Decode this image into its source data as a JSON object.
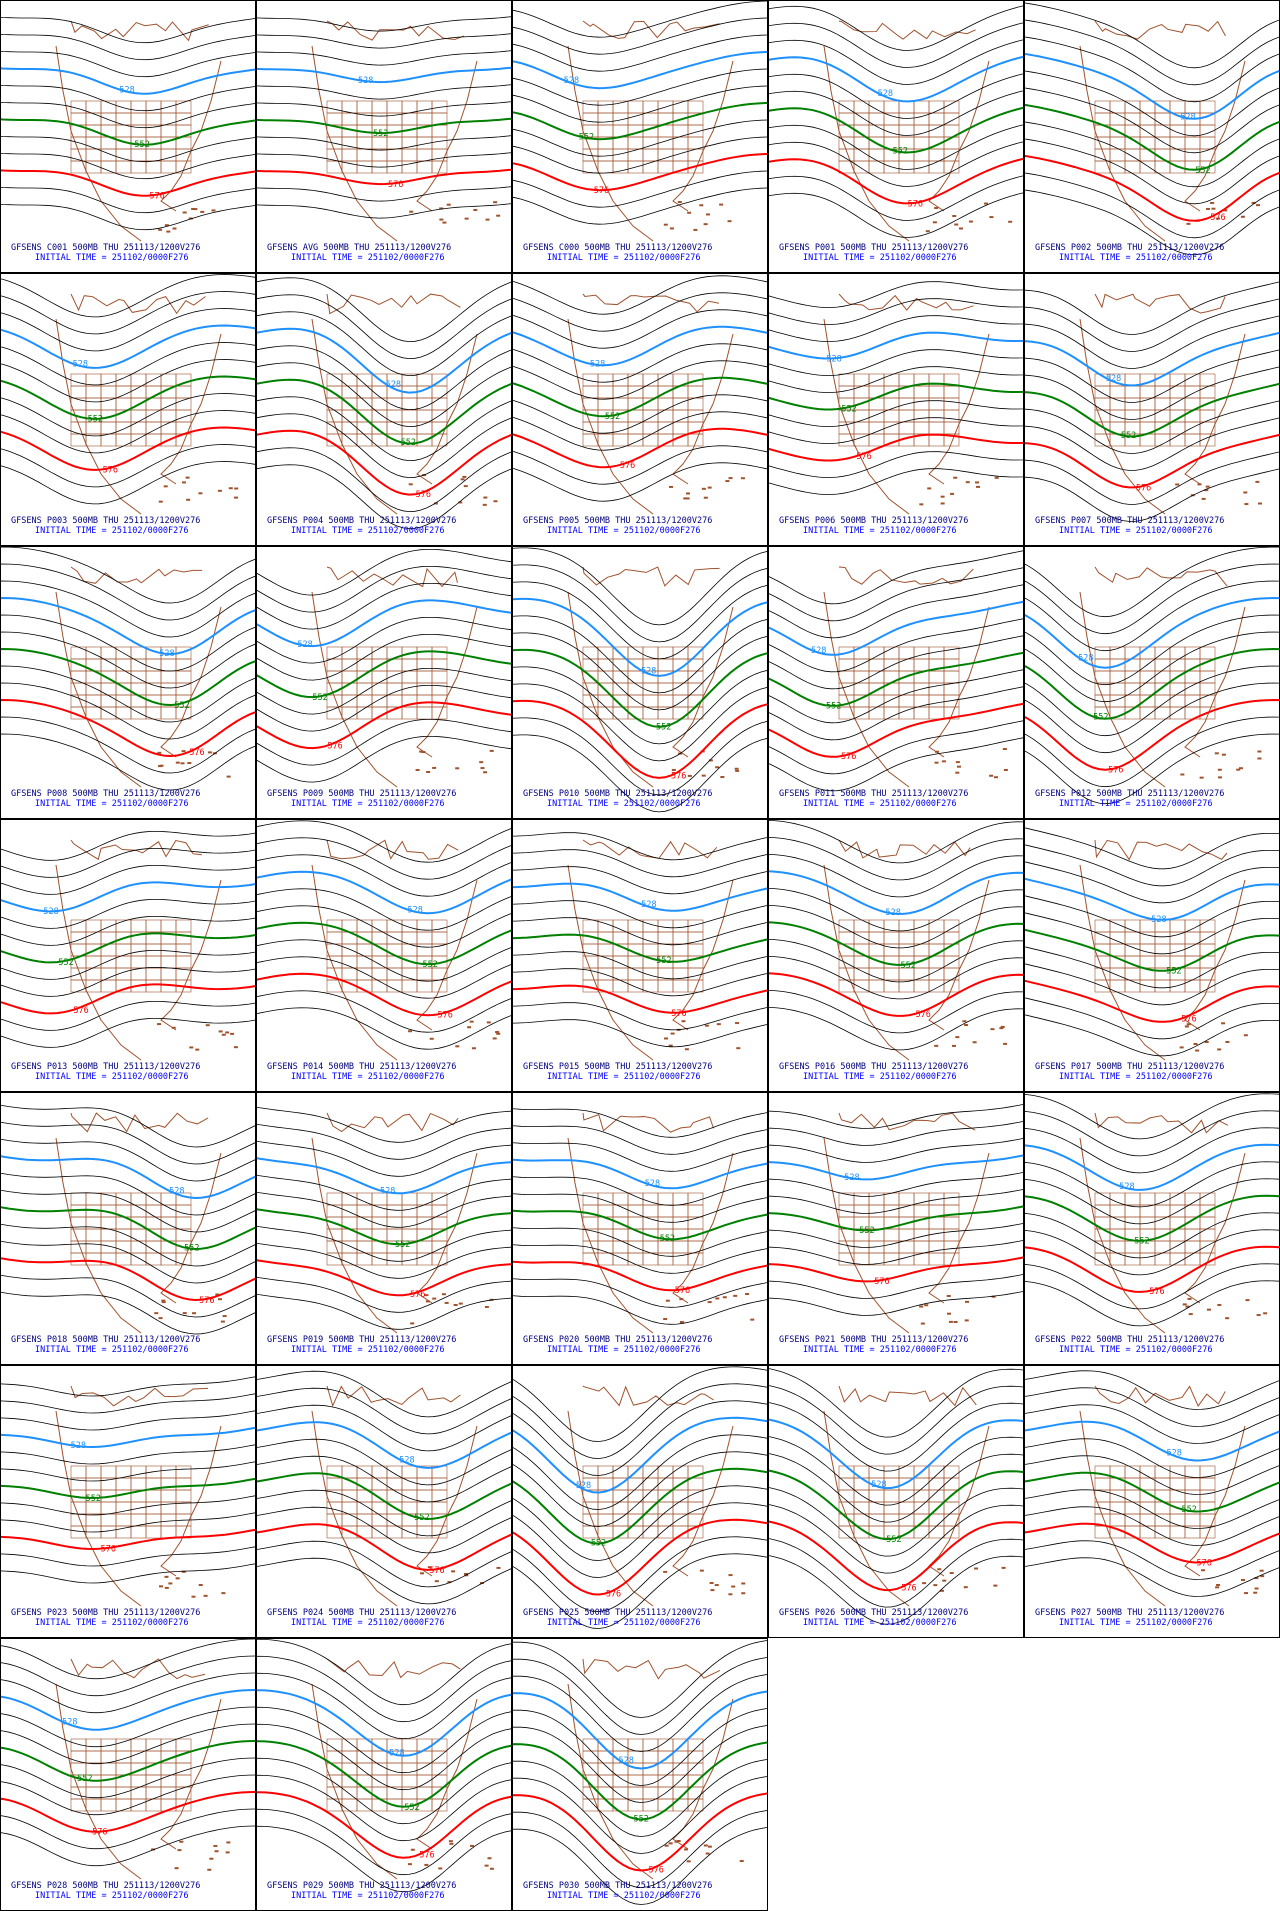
{
  "panels": [
    {
      "title": "GFSENS C001 500MB THU 251113/1200V276",
      "init": "INITIAL TIME = 251102/0000F276",
      "contours": [
        "528",
        "552",
        "576"
      ]
    },
    {
      "title": "GFSENS AVG 500MB THU 251113/1200V276",
      "init": "INITIAL TIME = 251102/0000F276",
      "contours": [
        "528",
        "552",
        "576"
      ]
    },
    {
      "title": "GFSENS C000 500MB THU 251113/1200V276",
      "init": "INITIAL TIME = 251102/0000F276",
      "contours": [
        "528",
        "552",
        "576"
      ]
    },
    {
      "title": "GFSENS P001 500MB THU 251113/1200V276",
      "init": "INITIAL TIME = 251102/0000F276",
      "contours": [
        "528",
        "552",
        "576"
      ]
    },
    {
      "title": "GFSENS P002 500MB THU 251113/1200V276",
      "init": "INITIAL TIME = 251102/0000F276",
      "contours": [
        "528",
        "552",
        "576"
      ]
    },
    {
      "title": "GFSENS P003 500MB THU 251113/1200V276",
      "init": "INITIAL TIME = 251102/0000F276",
      "contours": [
        "528",
        "552",
        "576"
      ]
    },
    {
      "title": "GFSENS P004 500MB THU 251113/1200V276",
      "init": "INITIAL TIME = 251102/0000F276",
      "contours": [
        "528",
        "552",
        "576"
      ]
    },
    {
      "title": "GFSENS P005 500MB THU 251113/1200V276",
      "init": "INITIAL TIME = 251102/0000F276",
      "contours": [
        "528",
        "552",
        "576"
      ]
    },
    {
      "title": "GFSENS P006 500MB THU 251113/1200V276",
      "init": "INITIAL TIME = 251102/0000F276",
      "contours": [
        "528",
        "552",
        "576"
      ]
    },
    {
      "title": "GFSENS P007 500MB THU 251113/1200V276",
      "init": "INITIAL TIME = 251102/0000F276",
      "contours": [
        "528",
        "552",
        "576"
      ]
    },
    {
      "title": "GFSENS P008 500MB THU 251113/1200V276",
      "init": "INITIAL TIME = 251102/0000F276",
      "contours": [
        "528",
        "552",
        "576"
      ]
    },
    {
      "title": "GFSENS P009 500MB THU 251113/1200V276",
      "init": "INITIAL TIME = 251102/0000F276",
      "contours": [
        "528",
        "552",
        "576"
      ]
    },
    {
      "title": "GFSENS P010 500MB THU 251113/1200V276",
      "init": "INITIAL TIME = 251102/0000F276",
      "contours": [
        "528",
        "552",
        "576"
      ]
    },
    {
      "title": "GFSENS P011 500MB THU 251113/1200V276",
      "init": "INITIAL TIME = 251102/0000F276",
      "contours": [
        "528",
        "552",
        "576"
      ]
    },
    {
      "title": "GFSENS P012 500MB THU 251113/1200V276",
      "init": "INITIAL TIME = 251102/0000F276",
      "contours": [
        "528",
        "552",
        "576"
      ]
    },
    {
      "title": "GFSENS P013 500MB THU 251113/1200V276",
      "init": "INITIAL TIME = 251102/0000F276",
      "contours": [
        "528",
        "552",
        "576"
      ]
    },
    {
      "title": "GFSENS P014 500MB THU 251113/1200V276",
      "init": "INITIAL TIME = 251102/0000F276",
      "contours": [
        "528",
        "552",
        "576"
      ]
    },
    {
      "title": "GFSENS P015 500MB THU 251113/1200V276",
      "init": "INITIAL TIME = 251102/0000F276",
      "contours": [
        "528",
        "552",
        "576"
      ]
    },
    {
      "title": "GFSENS P016 500MB THU 251113/1200V276",
      "init": "INITIAL TIME = 251102/0000F276",
      "contours": [
        "528",
        "552",
        "576"
      ]
    },
    {
      "title": "GFSENS P017 500MB THU 251113/1200V276",
      "init": "INITIAL TIME = 251102/0000F276",
      "contours": [
        "528",
        "552",
        "576"
      ]
    },
    {
      "title": "GFSENS P018 500MB THU 251113/1200V276",
      "init": "INITIAL TIME = 251102/0000F276",
      "contours": [
        "528",
        "552",
        "576"
      ]
    },
    {
      "title": "GFSENS P019 500MB THU 251113/1200V276",
      "init": "INITIAL TIME = 251102/0000F276",
      "contours": [
        "528",
        "552",
        "576"
      ]
    },
    {
      "title": "GFSENS P020 500MB THU 251113/1200V276",
      "init": "INITIAL TIME = 251102/0000F276",
      "contours": [
        "528",
        "552",
        "576"
      ]
    },
    {
      "title": "GFSENS P021 500MB THU 251113/1200V276",
      "init": "INITIAL TIME = 251102/0000F276",
      "contours": [
        "528",
        "552",
        "576"
      ]
    },
    {
      "title": "GFSENS P022 500MB THU 251113/1200V276",
      "init": "INITIAL TIME = 251102/0000F276",
      "contours": [
        "528",
        "552",
        "576"
      ]
    },
    {
      "title": "GFSENS P023 500MB THU 251113/1200V276",
      "init": "INITIAL TIME = 251102/0000F276",
      "contours": [
        "528",
        "552",
        "576"
      ]
    },
    {
      "title": "GFSENS P024 500MB THU 251113/1200V276",
      "init": "INITIAL TIME = 251102/0000F276",
      "contours": [
        "528",
        "552",
        "576"
      ]
    },
    {
      "title": "GFSENS P025 500MB THU 251113/1200V276",
      "init": "INITIAL TIME = 251102/0000F276",
      "contours": [
        "528",
        "552",
        "576"
      ]
    },
    {
      "title": "GFSENS P026 500MB THU 251113/1200V276",
      "init": "INITIAL TIME = 251102/0000F276",
      "contours": [
        "528",
        "552",
        "576"
      ]
    },
    {
      "title": "GFSENS P027 500MB THU 251113/1200V276",
      "init": "INITIAL TIME = 251102/0000F276",
      "contours": [
        "528",
        "552",
        "576"
      ]
    },
    {
      "title": "GFSENS P028 500MB THU 251113/1200V276",
      "init": "INITIAL TIME = 251102/0000F276",
      "contours": [
        "528",
        "552",
        "576"
      ]
    },
    {
      "title": "GFSENS P029 500MB THU 251113/1200V276",
      "init": "INITIAL TIME = 251102/0000F276",
      "contours": [
        "528",
        "552",
        "576"
      ]
    },
    {
      "title": "GFSENS P030 500MB THU 251113/1200V276",
      "init": "INITIAL TIME = 251102/0000F276",
      "contours": [
        "528",
        "552",
        "576"
      ]
    }
  ]
}
